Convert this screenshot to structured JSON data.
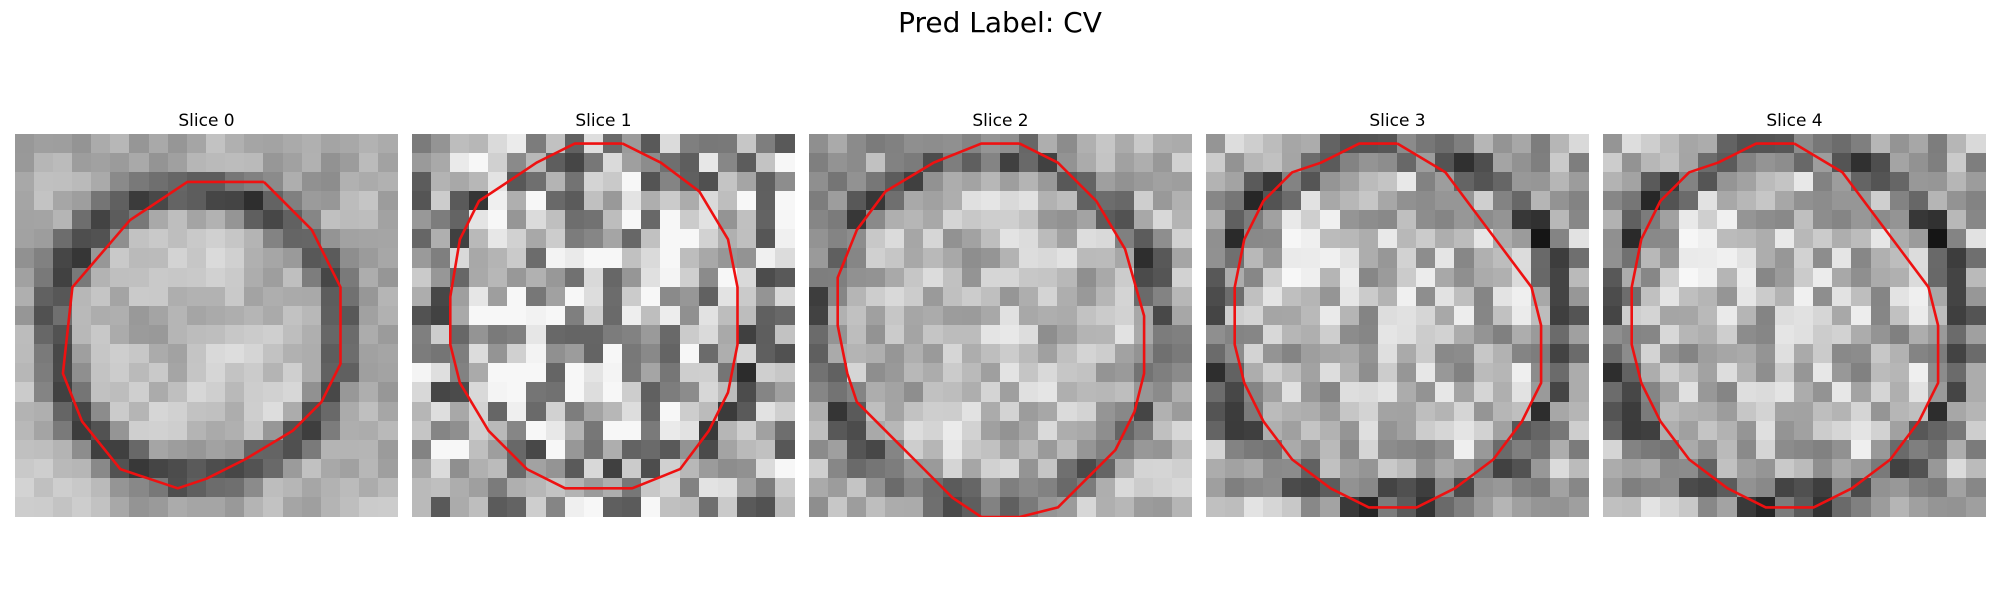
{
  "figure": {
    "title": "Pred Label: CV",
    "contour_color": "#ee1111"
  },
  "slices": [
    {
      "title": "Slice 0",
      "contour": [
        [
          13,
          2.5
        ],
        [
          9,
          2.5
        ],
        [
          6,
          4.5
        ],
        [
          3,
          8
        ],
        [
          2.5,
          12.5
        ],
        [
          3.5,
          15
        ],
        [
          5.5,
          17.5
        ],
        [
          7,
          18
        ],
        [
          8.5,
          18.5
        ],
        [
          10,
          18
        ],
        [
          12,
          17
        ],
        [
          14.5,
          15.5
        ],
        [
          16,
          14
        ],
        [
          17,
          12
        ],
        [
          17,
          8
        ],
        [
          15.5,
          5
        ],
        [
          13,
          2.5
        ]
      ]
    },
    {
      "title": "Slice 1",
      "contour": [
        [
          11,
          0.5
        ],
        [
          8.5,
          0.5
        ],
        [
          6.5,
          1.5
        ],
        [
          5,
          2.5
        ],
        [
          3.5,
          3.5
        ],
        [
          2.5,
          5.5
        ],
        [
          2,
          8.5
        ],
        [
          2,
          11
        ],
        [
          2.5,
          13
        ],
        [
          4,
          15.5
        ],
        [
          6,
          17.5
        ],
        [
          8,
          18.5
        ],
        [
          11.5,
          18.5
        ],
        [
          14,
          17.5
        ],
        [
          15.5,
          15.5
        ],
        [
          16.5,
          13.5
        ],
        [
          17,
          11
        ],
        [
          17,
          8
        ],
        [
          16.5,
          5.5
        ],
        [
          15,
          3
        ],
        [
          13,
          1.5
        ],
        [
          11,
          0.5
        ]
      ]
    },
    {
      "title": "Slice 2",
      "contour": [
        [
          11,
          0.5
        ],
        [
          9,
          0.5
        ],
        [
          6.5,
          1.5
        ],
        [
          4,
          3
        ],
        [
          2.5,
          5
        ],
        [
          1.5,
          7.5
        ],
        [
          1.5,
          10
        ],
        [
          2,
          12.5
        ],
        [
          2.5,
          14
        ],
        [
          4,
          15.5
        ],
        [
          5.5,
          17
        ],
        [
          7.5,
          19
        ],
        [
          9,
          20
        ],
        [
          11,
          20
        ],
        [
          13,
          19.5
        ],
        [
          14.5,
          18
        ],
        [
          16,
          16.5
        ],
        [
          17,
          14.5
        ],
        [
          17.5,
          12.5
        ],
        [
          17.5,
          9.5
        ],
        [
          16.5,
          6
        ],
        [
          15,
          3.5
        ],
        [
          13,
          1.5
        ],
        [
          11,
          0.5
        ]
      ]
    },
    {
      "title": "Slice 3",
      "contour": [
        [
          10,
          0.5
        ],
        [
          8,
          0.5
        ],
        [
          6,
          1.5
        ],
        [
          4.5,
          2
        ],
        [
          3,
          3.5
        ],
        [
          2,
          5.5
        ],
        [
          1.5,
          8
        ],
        [
          1.5,
          11
        ],
        [
          2,
          13
        ],
        [
          3,
          15
        ],
        [
          4.5,
          17
        ],
        [
          6.5,
          18.5
        ],
        [
          8.5,
          19.5
        ],
        [
          11,
          19.5
        ],
        [
          13,
          18.5
        ],
        [
          15,
          17
        ],
        [
          16.5,
          15
        ],
        [
          17.5,
          13
        ],
        [
          17.5,
          10
        ],
        [
          17,
          8
        ],
        [
          15.5,
          6
        ],
        [
          14,
          4
        ],
        [
          12.5,
          2
        ],
        [
          10,
          0.5
        ]
      ]
    },
    {
      "title": "Slice 4",
      "contour": [
        [
          10,
          0.5
        ],
        [
          8,
          0.5
        ],
        [
          6,
          1.5
        ],
        [
          4.5,
          2
        ],
        [
          3,
          3.5
        ],
        [
          2,
          5.5
        ],
        [
          1.5,
          8
        ],
        [
          1.5,
          11
        ],
        [
          2,
          13
        ],
        [
          3,
          15
        ],
        [
          4.5,
          17
        ],
        [
          6.5,
          18.5
        ],
        [
          8.5,
          19.5
        ],
        [
          11,
          19.5
        ],
        [
          13,
          18.5
        ],
        [
          15,
          17
        ],
        [
          16.5,
          15
        ],
        [
          17.5,
          13
        ],
        [
          17.5,
          10
        ],
        [
          17,
          8
        ],
        [
          15.5,
          6
        ],
        [
          14,
          4
        ],
        [
          12.5,
          2
        ],
        [
          10,
          0.5
        ]
      ]
    }
  ]
}
